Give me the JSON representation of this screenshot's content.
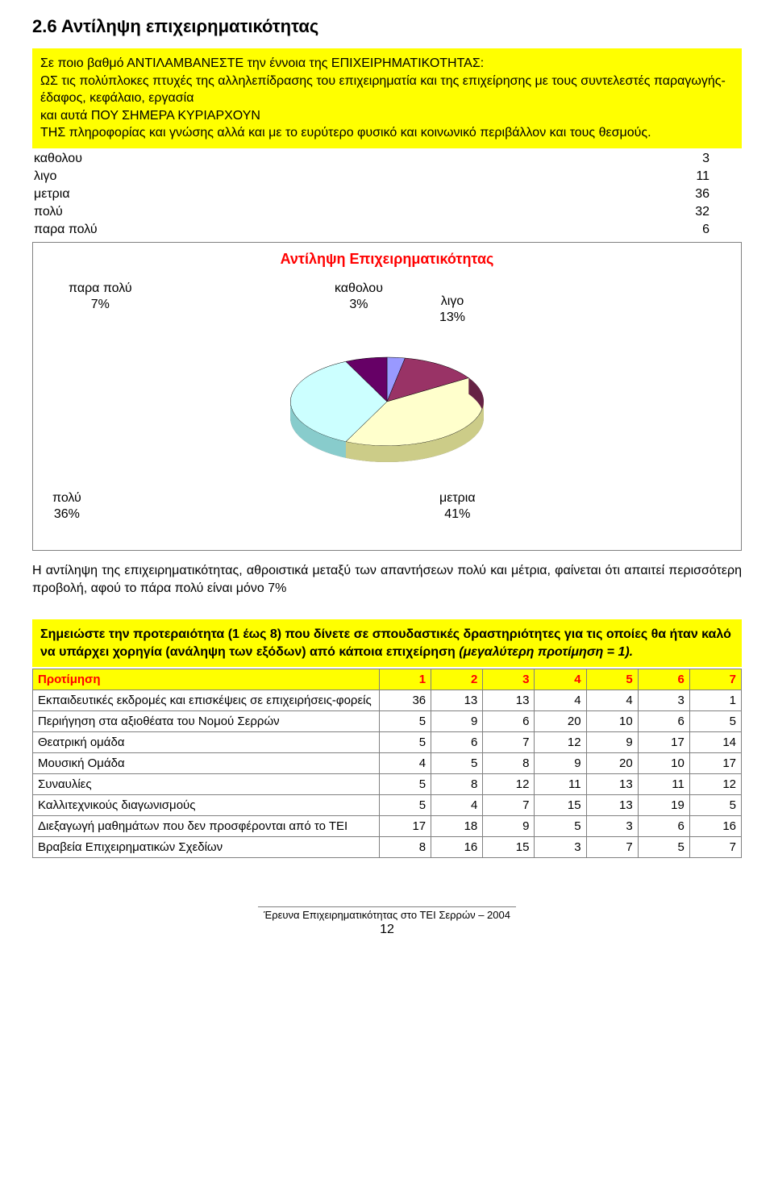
{
  "section_title": "2.6  Αντίληψη επιχειρηματικότητας",
  "question_box": {
    "line1": "Σε ποιο βαθμό ΑΝΤΙΛΑΜΒΑΝΕΣΤΕ την έννοια της ΕΠΙΧΕΙΡΗΜΑΤΙΚΟΤΗΤΑΣ:",
    "line2": "ΩΣ τις πολύπλοκες πτυχές της αλληλεπίδρασης του επιχειρηματία και της επιχείρησης με τους συντελεστές παραγωγής- έδαφος, κεφάλαιο, εργασία",
    "line3": "και αυτά ΠΟΥ ΣΗΜΕΡΑ ΚΥΡΙΑΡΧΟΥΝ",
    "line4": "ΤΗΣ πληροφορίας και γνώσης αλλά και με το ευρύτερο φυσικό και κοινωνικό περιβάλλον και τους θεσμούς."
  },
  "results": [
    {
      "label": "καθολου",
      "value": "3"
    },
    {
      "label": "λιγο",
      "value": "11"
    },
    {
      "label": "μετρια",
      "value": "36"
    },
    {
      "label": "πολύ",
      "value": "32"
    },
    {
      "label": "παρα πολύ",
      "value": "6"
    }
  ],
  "chart": {
    "title": "Αντίληψη Επιχειρηματικότητας",
    "type": "pie-3d",
    "background_color": "#ffffff",
    "border_color": "#808080",
    "title_color": "#ff0000",
    "title_fontsize": 18,
    "label_fontsize": 16,
    "slices": [
      {
        "label": "καθολου",
        "pct": "3%",
        "value": 3,
        "color": "#9999ff",
        "side_color": "#6666aa"
      },
      {
        "label": "λιγο",
        "pct": "13%",
        "value": 13,
        "color": "#993366",
        "side_color": "#662244"
      },
      {
        "label": "μετρια",
        "pct": "41%",
        "value": 41,
        "color": "#ffffcc",
        "side_color": "#cccc88"
      },
      {
        "label": "πολύ",
        "pct": "36%",
        "value": 36,
        "color": "#ccffff",
        "side_color": "#88cccc"
      },
      {
        "label": "παρα πολύ",
        "pct": "7%",
        "value": 7,
        "color": "#660066",
        "side_color": "#440044"
      }
    ],
    "labels": {
      "top_left": "παρα πολύ\n7%",
      "top_mid": "καθολου\n3%",
      "top_right": "λιγο\n13%",
      "bot_left": "πολύ\n36%",
      "bot_right": "μετρια\n41%"
    }
  },
  "body_text": "Η αντίληψη της επιχειρηματικότητας, αθροιστικά μεταξύ των απαντήσεων πολύ και μέτρια, φαίνεται ότι απαιτεί περισσότερη προβολή, αφού το πάρα πολύ είναι μόνο 7%",
  "priorities_box": {
    "text": "Σημειώστε την προτεραιότητα (1 έως 8) που δίνετε σε σπουδαστικές δραστηριότητες για τις οποίες θα ήταν καλό να υπάρχει χορηγία (ανάληψη των εξόδων) από κάποια επιχείρηση ",
    "italic_suffix": "(μεγαλύτερη προτίμηση = 1)."
  },
  "priorities_table": {
    "header": [
      "Προτίμηση",
      "1",
      "2",
      "3",
      "4",
      "5",
      "6",
      "7"
    ],
    "header_bg": "#ffff00",
    "header_color": "#ff0000",
    "border_color": "#808080",
    "rows": [
      {
        "label": "Εκπαιδευτικές εκδρομές και επισκέψεις σε επιχειρήσεις-φορείς",
        "vals": [
          "36",
          "13",
          "13",
          "4",
          "4",
          "3",
          "1"
        ]
      },
      {
        "label": "Περιήγηση στα αξιοθέατα του Νομού Σερρών",
        "vals": [
          "5",
          "9",
          "6",
          "20",
          "10",
          "6",
          "5"
        ]
      },
      {
        "label": "Θεατρική ομάδα",
        "vals": [
          "5",
          "6",
          "7",
          "12",
          "9",
          "17",
          "14"
        ]
      },
      {
        "label": "Μουσική Ομάδα",
        "vals": [
          "4",
          "5",
          "8",
          "9",
          "20",
          "10",
          "17"
        ]
      },
      {
        "label": "Συναυλίες",
        "vals": [
          "5",
          "8",
          "12",
          "11",
          "13",
          "11",
          "12"
        ]
      },
      {
        "label": "Καλλιτεχνικούς διαγωνισμούς",
        "vals": [
          "5",
          "4",
          "7",
          "15",
          "13",
          "19",
          "5"
        ]
      },
      {
        "label": "Διεξαγωγή μαθημάτων που δεν προσφέρονται από το ΤΕΙ",
        "vals": [
          "17",
          "18",
          "9",
          "5",
          "3",
          "6",
          "16"
        ]
      },
      {
        "label": "Βραβεία Επιχειρηματικών Σχεδίων",
        "vals": [
          "8",
          "16",
          "15",
          "3",
          "7",
          "5",
          "7"
        ]
      }
    ]
  },
  "footer": "Έρευνα Επιχειρηματικότητας στο ΤΕΙ Σερρών – 2004",
  "page_number": "12"
}
